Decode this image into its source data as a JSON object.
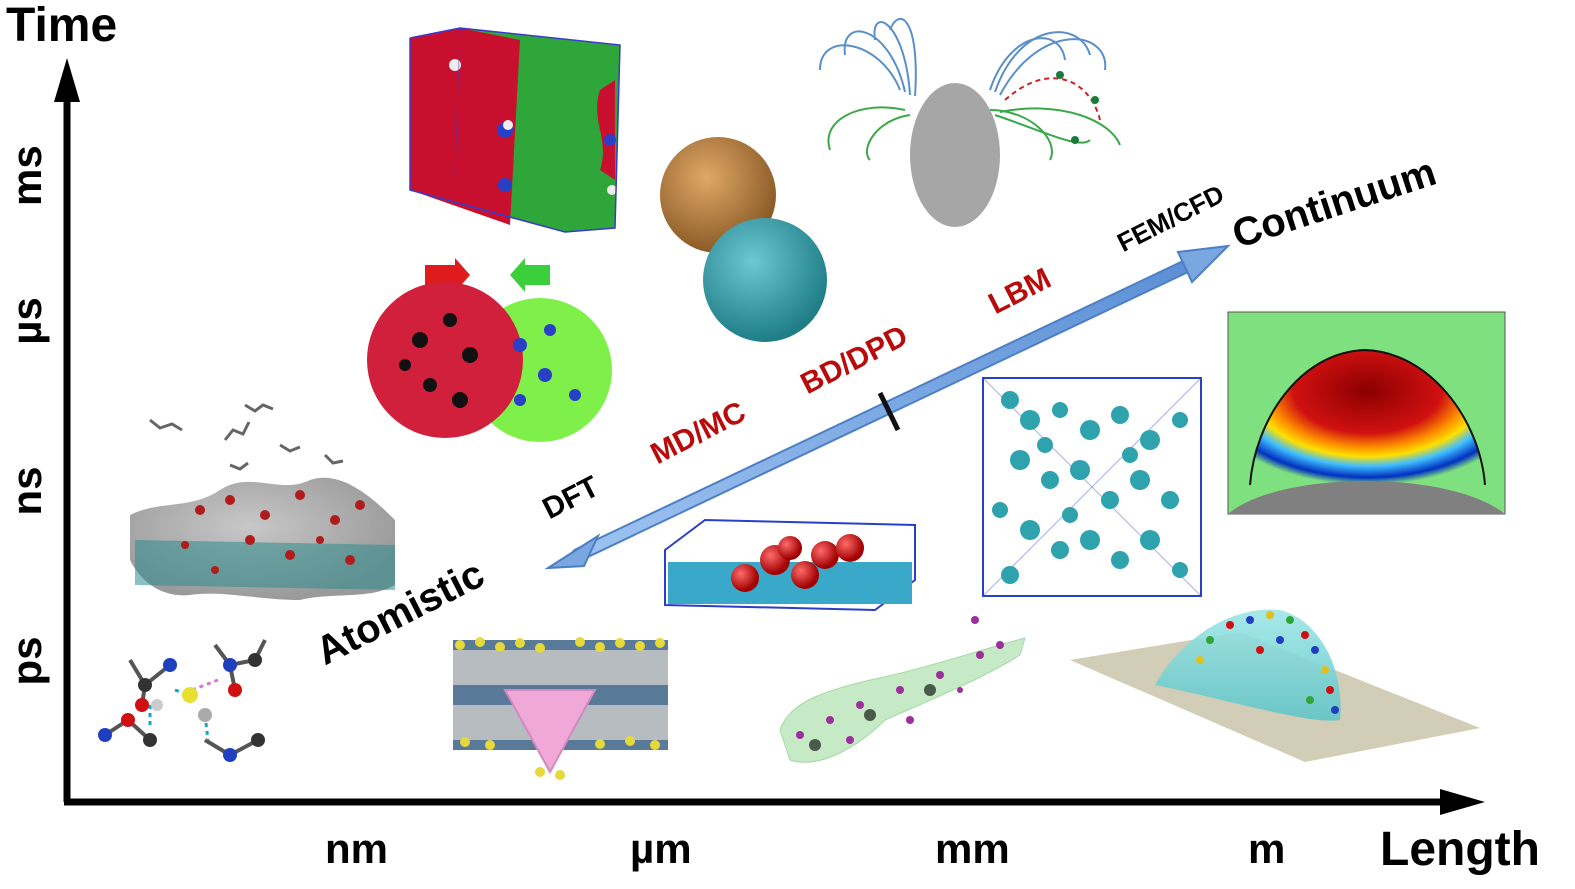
{
  "axes": {
    "y_title": "Time",
    "x_title": "Length",
    "y_ticks": [
      "ps",
      "ns",
      "µs",
      "ms"
    ],
    "x_ticks": [
      "nm",
      "µm",
      "mm",
      "m"
    ]
  },
  "scale_arrow": {
    "start_label": "Atomistic",
    "end_label": "Continuum",
    "methods": [
      {
        "label": "DFT",
        "color": "#000000"
      },
      {
        "label": "MD/MC",
        "color": "#b80c0c"
      },
      {
        "label": "BD/DPD",
        "color": "#b80c0c"
      },
      {
        "label": "LBM",
        "color": "#b80c0c"
      },
      {
        "label": "FEM/CFD",
        "color": "#000000"
      }
    ],
    "arrow_color": "#7aa7e0"
  },
  "colors": {
    "red_polymer": "#c8102e",
    "green_polymer": "#2ea63a",
    "orange_sphere": "#c98844",
    "teal_sphere": "#3aa8b5",
    "membrane_gray": "#d4d4d4",
    "continuum_bg": "#7fe07f"
  }
}
